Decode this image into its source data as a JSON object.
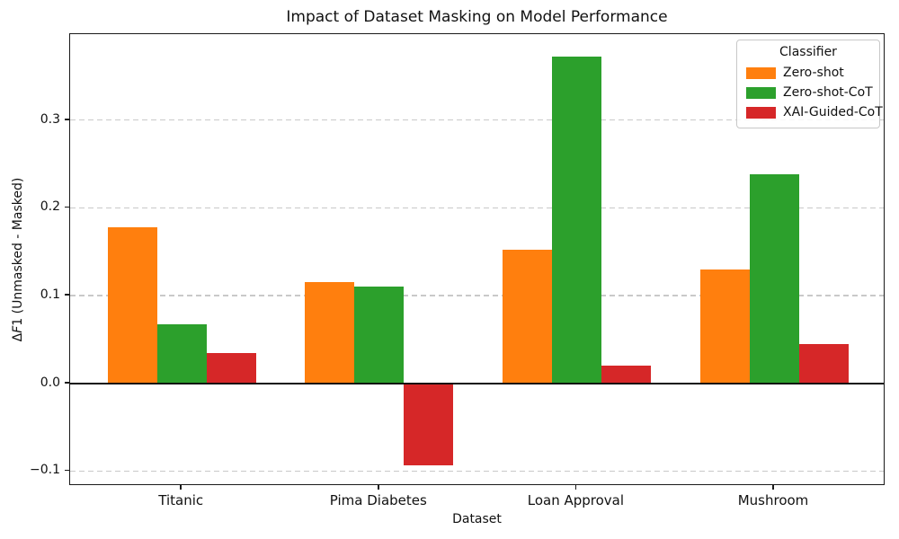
{
  "title": "Impact of Dataset Masking on Model Performance",
  "ylabel_parts": {
    "delta": "Δ",
    "f_italic": "F",
    "rest": "1 (Unmasked - Masked)"
  },
  "chart_data": {
    "type": "bar",
    "title": "Impact of Dataset Masking on Model Performance",
    "xlabel": "Dataset",
    "ylabel": "ΔF1 (Unmasked - Masked)",
    "categories": [
      "Titanic",
      "Pima Diabetes",
      "Loan Approval",
      "Mushroom"
    ],
    "series": [
      {
        "name": "Zero-shot",
        "color": "#ff7f0e",
        "values": [
          0.178,
          0.115,
          0.152,
          0.13
        ]
      },
      {
        "name": "Zero-shot-CoT",
        "color": "#2ca02c",
        "values": [
          0.067,
          0.11,
          0.372,
          0.238
        ]
      },
      {
        "name": "XAI-Guided-CoT",
        "color": "#d62728",
        "values": [
          0.035,
          -0.093,
          0.02,
          0.045
        ]
      }
    ],
    "ylim": [
      -0.117,
      0.398
    ],
    "yticks": [
      {
        "value": 0.3,
        "label": "0.3"
      },
      {
        "value": 0.2,
        "label": "0.2"
      },
      {
        "value": 0.1,
        "label": "0.1"
      },
      {
        "value": 0.0,
        "label": "0.0"
      },
      {
        "value": -0.1,
        "label": "−0.1"
      }
    ],
    "grid": "horizontal-dashed",
    "legend": {
      "title": "Classifier",
      "position": "upper right"
    }
  }
}
